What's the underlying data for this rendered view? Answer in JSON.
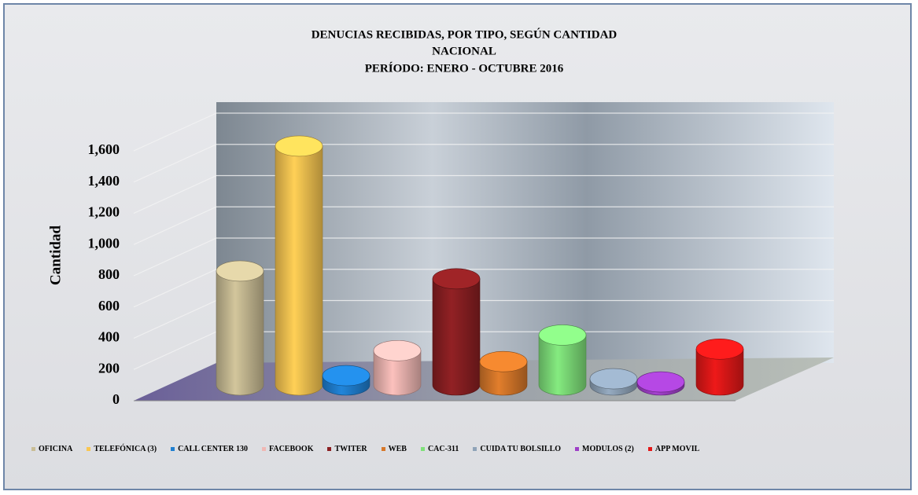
{
  "chart_data": {
    "type": "bar3d",
    "title": [
      "DENUCIAS  RECIBIDAS,  POR TIPO, SEGÚN  CANTIDAD",
      "NACIONAL",
      "PERÍODO:  ENERO  -  OCTUBRE  2016"
    ],
    "ylabel": "Cantidad",
    "categories": [
      "OFICINA",
      "TELEFÓNICA (3)",
      "CALL CENTER 130",
      "FACEBOOK",
      "TWITER",
      "WEB",
      "CAC-311",
      "CUIDA TU BOLSILLO",
      "MODULOS (2)",
      "APP MOVIL"
    ],
    "values": [
      730,
      1530,
      60,
      220,
      680,
      150,
      320,
      40,
      20,
      230
    ],
    "colors": [
      "#c9bd95",
      "#f9c652",
      "#1f7fd0",
      "#f0b8b4",
      "#8b1f22",
      "#d7782a",
      "#7fe07a",
      "#8fa3b8",
      "#9e3fc7",
      "#e31818"
    ],
    "ylim": [
      0,
      1600
    ],
    "yticks": [
      0,
      200,
      400,
      600,
      800,
      {
        "value": 1000,
        "label": "1,000"
      },
      {
        "value": 1200,
        "label": "1,200"
      },
      {
        "value": 1400,
        "label": "1,400"
      },
      {
        "value": 1600,
        "label": "1,600"
      }
    ],
    "grid": true
  }
}
